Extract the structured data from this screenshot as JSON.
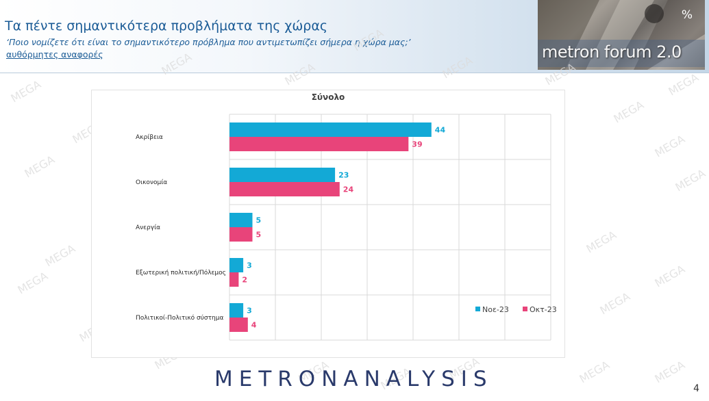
{
  "header": {
    "title": "Τα πέντε σημαντικότερα προβλήματα της χώρας",
    "question": "‘Ποιο νομίζετε ότι είναι το σημαντικότερο πρόβλημα που αντιμετωπίζει σήμερα η χώρα μας;’",
    "note": "αυθόρμητες αναφορές"
  },
  "logo": {
    "text": "metron forum 2.0",
    "percent": "%"
  },
  "watermark_text": "MEGA",
  "footer": {
    "brand": "METRONANALYSIS",
    "page_number": "4"
  },
  "colors": {
    "header_text": "#1a5b96",
    "series_nov": "#13a9d6",
    "series_oct": "#e8447a",
    "grid": "#d9d9d9"
  },
  "chart_data": {
    "type": "bar",
    "orientation": "horizontal",
    "title": "Σύνολο",
    "categories": [
      "Ακρίβεια",
      "Οικονομία",
      "Ανεργία",
      "Εξωτερική πολιτική/Πόλεμος",
      "Πολιτικοί-Πολιτικό σύστημα"
    ],
    "series": [
      {
        "name": "Νοε-23",
        "values": [
          44,
          23,
          5,
          3,
          3
        ],
        "color": "#13a9d6"
      },
      {
        "name": "Οκτ-23",
        "values": [
          39,
          24,
          5,
          2,
          4
        ],
        "color": "#e8447a"
      }
    ],
    "xlim": [
      0,
      70
    ],
    "grid": true,
    "data_labels": true,
    "legend_position": "bottom-right"
  }
}
